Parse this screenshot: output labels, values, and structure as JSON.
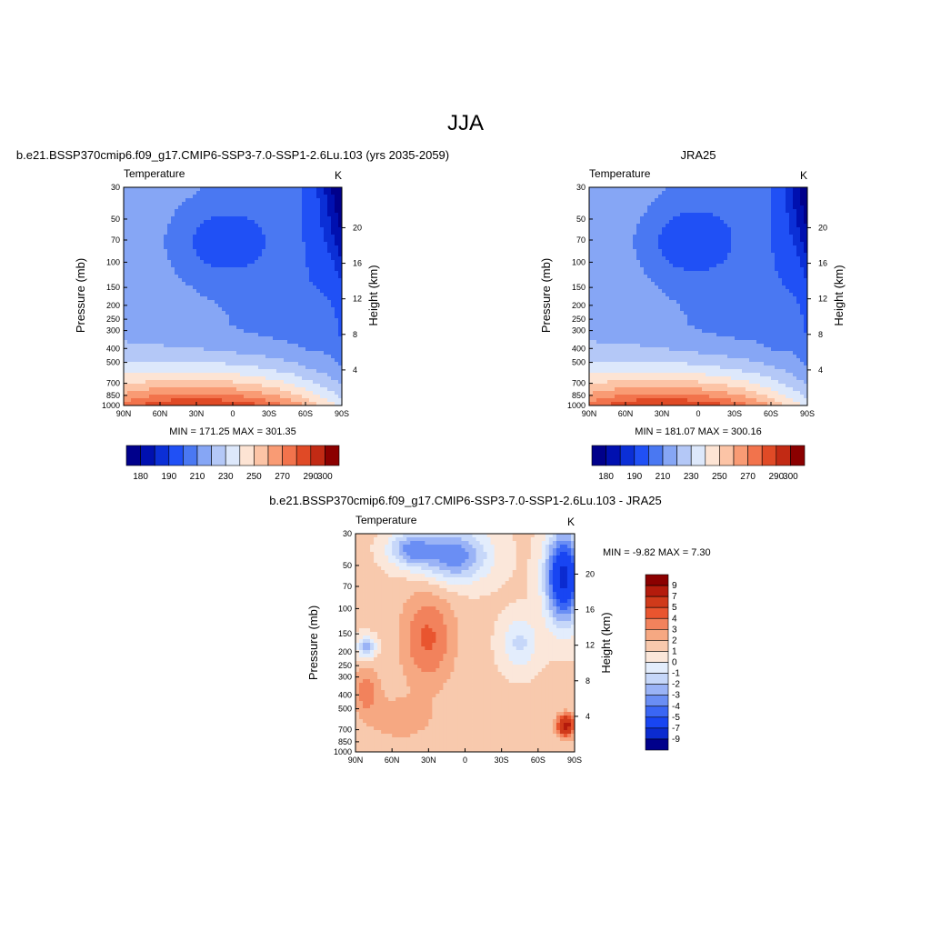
{
  "figure": {
    "title": "JJA",
    "colors": {
      "abs_levels": [
        "#00008b",
        "#0010b0",
        "#0b2fd6",
        "#2050f5",
        "#4a78f2",
        "#86a6f5",
        "#b4c8f7",
        "#dde8fb",
        "#fde4d4",
        "#fcc4a6",
        "#f99b74",
        "#f2734c",
        "#e04a26",
        "#c22a14",
        "#8b0000"
      ],
      "diff_levels": [
        "#00008b",
        "#0b2bd0",
        "#1845f2",
        "#3a66f4",
        "#6a8ef4",
        "#9ab3f6",
        "#c6d7f9",
        "#e3edfc",
        "#fbe7da",
        "#f8c9ad",
        "#f6a882",
        "#f2825c",
        "#e9552f",
        "#d03a1a",
        "#b41b0c",
        "#8b0000"
      ]
    }
  },
  "chart_data": [
    {
      "type": "contour",
      "title": "b.e21.BSSP370cmip6.f09_g17.CMIP6-SSP3-7.0-SSP1-2.6Lu.103 (yrs 2035-2059)",
      "left_label": "Temperature",
      "right_label": "K",
      "ylabel": "Pressure (mb)",
      "y2label": "Height (km)",
      "x_ticks": [
        "90N",
        "60N",
        "30N",
        "0",
        "30S",
        "60S",
        "90S"
      ],
      "y_ticks": [
        "30",
        "50",
        "70",
        "100",
        "150",
        "200",
        "250",
        "300",
        "400",
        "500",
        "700",
        "850",
        "1000"
      ],
      "y2_ticks": [
        "20",
        "16",
        "12",
        "8",
        "4"
      ],
      "stats": "MIN = 171.25  MAX = 301.35",
      "colorbar_labels": [
        "180",
        "190",
        "210",
        "230",
        "250",
        "270",
        "290",
        "300"
      ]
    },
    {
      "type": "contour",
      "title": "JRA25",
      "left_label": "Temperature",
      "right_label": "K",
      "ylabel": "Pressure (mb)",
      "y2label": "Height (km)",
      "x_ticks": [
        "90N",
        "60N",
        "30N",
        "0",
        "30S",
        "60S",
        "90S"
      ],
      "y_ticks": [
        "30",
        "50",
        "70",
        "100",
        "150",
        "200",
        "250",
        "300",
        "400",
        "500",
        "700",
        "850",
        "1000"
      ],
      "y2_ticks": [
        "20",
        "16",
        "12",
        "8",
        "4"
      ],
      "stats": "MIN = 181.07  MAX = 300.16",
      "colorbar_labels": [
        "180",
        "190",
        "210",
        "230",
        "250",
        "270",
        "290",
        "300"
      ]
    },
    {
      "type": "contour",
      "title": "b.e21.BSSP370cmip6.f09_g17.CMIP6-SSP3-7.0-SSP1-2.6Lu.103 - JRA25",
      "left_label": "Temperature",
      "right_label": "K",
      "ylabel": "Pressure (mb)",
      "y2label": "Height (km)",
      "x_ticks": [
        "90N",
        "60N",
        "30N",
        "0",
        "30S",
        "60S",
        "90S"
      ],
      "y_ticks": [
        "30",
        "50",
        "70",
        "100",
        "150",
        "200",
        "250",
        "300",
        "400",
        "500",
        "700",
        "850",
        "1000"
      ],
      "y2_ticks": [
        "20",
        "16",
        "12",
        "8",
        "4"
      ],
      "stats": "MIN =  -9.82  MAX =   7.30",
      "colorbar_labels": [
        "9",
        "7",
        "5",
        "4",
        "3",
        "2",
        "1",
        "0",
        "-1",
        "-2",
        "-3",
        "-4",
        "-5",
        "-7",
        "-9"
      ]
    }
  ]
}
